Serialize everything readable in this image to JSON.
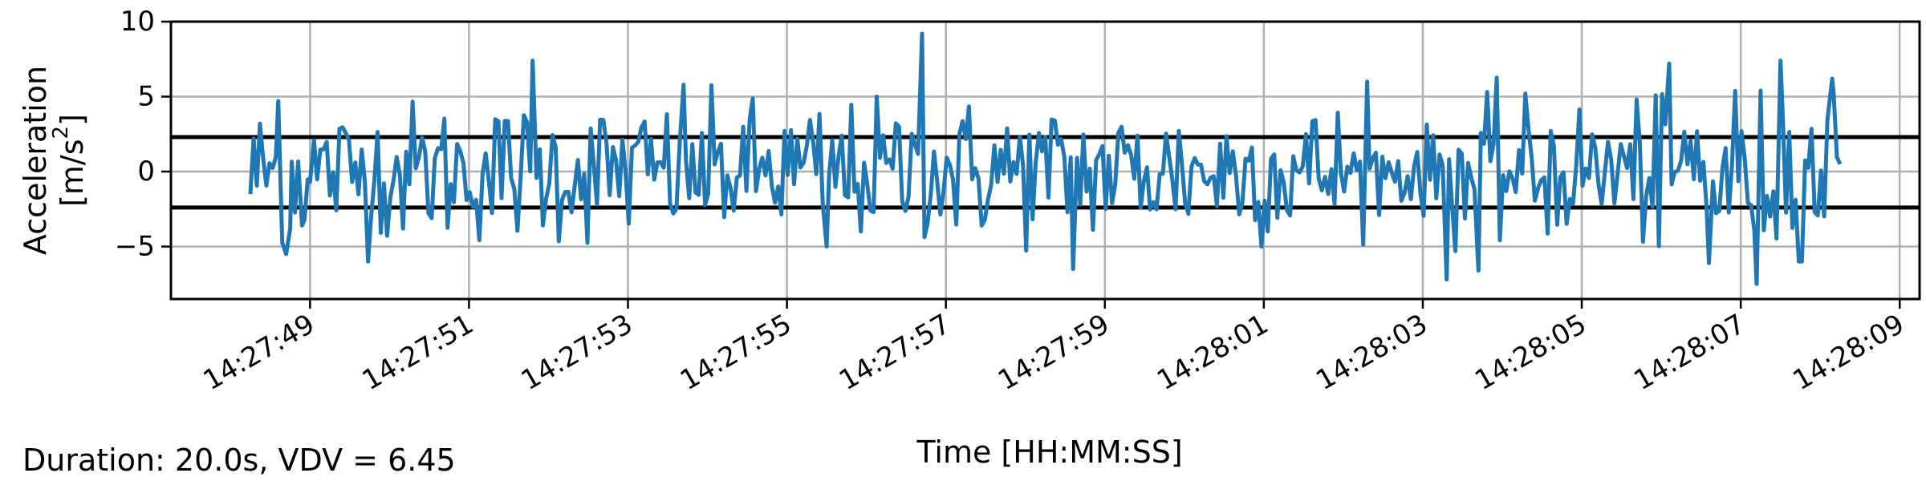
{
  "chart_data": {
    "type": "line",
    "title": "",
    "xlabel": "Time [HH:MM:SS]",
    "ylabel_line1": "Acceleration",
    "ylabel_line2_base": "[m/s",
    "ylabel_line2_sup": "2",
    "ylabel_line2_end": "]",
    "xlim": [
      "14:27:47.25",
      "14:28:09.25"
    ],
    "ylim": [
      -8.5,
      10
    ],
    "x_ticks": [
      "14:27:49",
      "14:27:51",
      "14:27:53",
      "14:27:55",
      "14:27:57",
      "14:27:59",
      "14:28:01",
      "14:28:03",
      "14:28:05",
      "14:28:07",
      "14:28:09"
    ],
    "y_ticks": [
      {
        "value": 10,
        "label": "10"
      },
      {
        "value": 5,
        "label": "5"
      },
      {
        "value": 0,
        "label": "0"
      },
      {
        "value": -5,
        "label": "−5"
      }
    ],
    "grid": true,
    "threshold_lines": [
      2.3,
      -2.4
    ],
    "threshold_color": "#000000",
    "series": [
      {
        "color": "#1f77b4",
        "start": "14:27:48.25",
        "end": "14:28:08.25",
        "sample_interval_s": 0.04,
        "notable_points": [
          {
            "x": "14:27:48.25",
            "y": -1.5
          },
          {
            "x": "14:27:48.60",
            "y": 4.7
          },
          {
            "x": "14:27:48.70",
            "y": -5.5
          },
          {
            "x": "14:27:48.75",
            "y": -3.8
          },
          {
            "x": "14:27:48.90",
            "y": -3.6
          },
          {
            "x": "14:27:49.00",
            "y": -0.7
          },
          {
            "x": "14:27:51.80",
            "y": 7.4
          },
          {
            "x": "14:27:53.70",
            "y": 5.8
          },
          {
            "x": "14:27:55.50",
            "y": -5.0
          },
          {
            "x": "14:27:56.70",
            "y": 9.2
          },
          {
            "x": "14:27:58.60",
            "y": -6.5
          },
          {
            "x": "14:28:02.30",
            "y": 6.0
          },
          {
            "x": "14:28:03.30",
            "y": -7.2
          },
          {
            "x": "14:28:03.70",
            "y": -6.6
          },
          {
            "x": "14:28:06.10",
            "y": 7.2
          },
          {
            "x": "14:28:06.60",
            "y": -6.1
          },
          {
            "x": "14:28:07.20",
            "y": -7.5
          },
          {
            "x": "14:28:07.50",
            "y": 7.4
          },
          {
            "x": "14:28:08.15",
            "y": 6.2
          },
          {
            "x": "14:28:08.25",
            "y": 0.5
          }
        ]
      }
    ]
  },
  "annotation": "Duration: 20.0s, VDV = 6.45"
}
